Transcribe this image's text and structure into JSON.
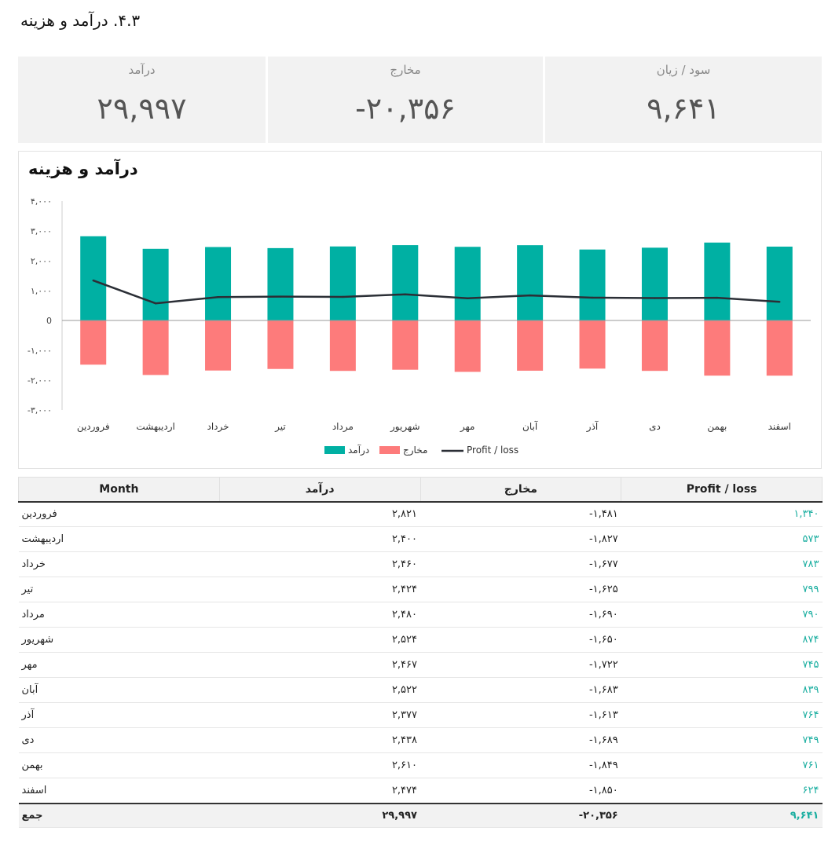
{
  "page": {
    "title": "۴.۳. درآمد و هزینه"
  },
  "kpis": [
    {
      "label": "درآمد",
      "value": "۲۹,۹۹۷"
    },
    {
      "label": "مخارج",
      "value": "-۲۰,۳۵۶"
    },
    {
      "label": "سود / زیان",
      "value": "۹,۶۴۱"
    }
  ],
  "chart_data": {
    "type": "bar",
    "title": "درآمد و هزینه",
    "categories": [
      "فروردین",
      "اردیبهشت",
      "خرداد",
      "تیر",
      "مرداد",
      "شهریور",
      "مهر",
      "آبان",
      "آذر",
      "دی",
      "بهمن",
      "اسفند"
    ],
    "series": [
      {
        "name": "درآمد",
        "type": "bar",
        "color": "#00b0a3",
        "values": [
          2821,
          2400,
          2460,
          2424,
          2480,
          2524,
          2467,
          2522,
          2377,
          2438,
          2610,
          2474
        ]
      },
      {
        "name": "مخارج",
        "type": "bar",
        "color": "#fd7b7b",
        "values": [
          -1481,
          -1827,
          -1677,
          -1625,
          -1690,
          -1650,
          -1722,
          -1683,
          -1613,
          -1689,
          -1849,
          -1850
        ]
      },
      {
        "name": "Profit / loss",
        "type": "line",
        "color": "#2b2f36",
        "values": [
          1340,
          573,
          783,
          799,
          790,
          874,
          745,
          839,
          764,
          749,
          761,
          624
        ]
      }
    ],
    "yticks": [
      "۴,۰۰۰",
      "۳,۰۰۰",
      "۲,۰۰۰",
      "۱,۰۰۰",
      "0",
      "-۱,۰۰۰",
      "-۲,۰۰۰",
      "-۳,۰۰۰"
    ],
    "ylim": [
      -3000,
      4000
    ],
    "grid": false,
    "legend": "bottom"
  },
  "table": {
    "headers": [
      "Month",
      "درآمد",
      "مخارج",
      "Profit / loss"
    ],
    "rows": [
      [
        "فروردین",
        "۲,۸۲۱",
        "-۱,۴۸۱",
        "۱,۳۴۰"
      ],
      [
        "اردیبهشت",
        "۲,۴۰۰",
        "-۱,۸۲۷",
        "۵۷۳"
      ],
      [
        "خرداد",
        "۲,۴۶۰",
        "-۱,۶۷۷",
        "۷۸۳"
      ],
      [
        "تیر",
        "۲,۴۲۴",
        "-۱,۶۲۵",
        "۷۹۹"
      ],
      [
        "مرداد",
        "۲,۴۸۰",
        "-۱,۶۹۰",
        "۷۹۰"
      ],
      [
        "شهریور",
        "۲,۵۲۴",
        "-۱,۶۵۰",
        "۸۷۴"
      ],
      [
        "مهر",
        "۲,۴۶۷",
        "-۱,۷۲۲",
        "۷۴۵"
      ],
      [
        "آبان",
        "۲,۵۲۲",
        "-۱,۶۸۳",
        "۸۳۹"
      ],
      [
        "آذر",
        "۲,۳۷۷",
        "-۱,۶۱۳",
        "۷۶۴"
      ],
      [
        "دی",
        "۲,۴۳۸",
        "-۱,۶۸۹",
        "۷۴۹"
      ],
      [
        "بهمن",
        "۲,۶۱۰",
        "-۱,۸۴۹",
        "۷۶۱"
      ],
      [
        "اسفند",
        "۲,۴۷۴",
        "-۱,۸۵۰",
        "۶۲۴"
      ]
    ],
    "total": [
      "جمع",
      "۲۹,۹۹۷",
      "-۲۰,۳۵۶",
      "۹,۶۴۱"
    ]
  }
}
